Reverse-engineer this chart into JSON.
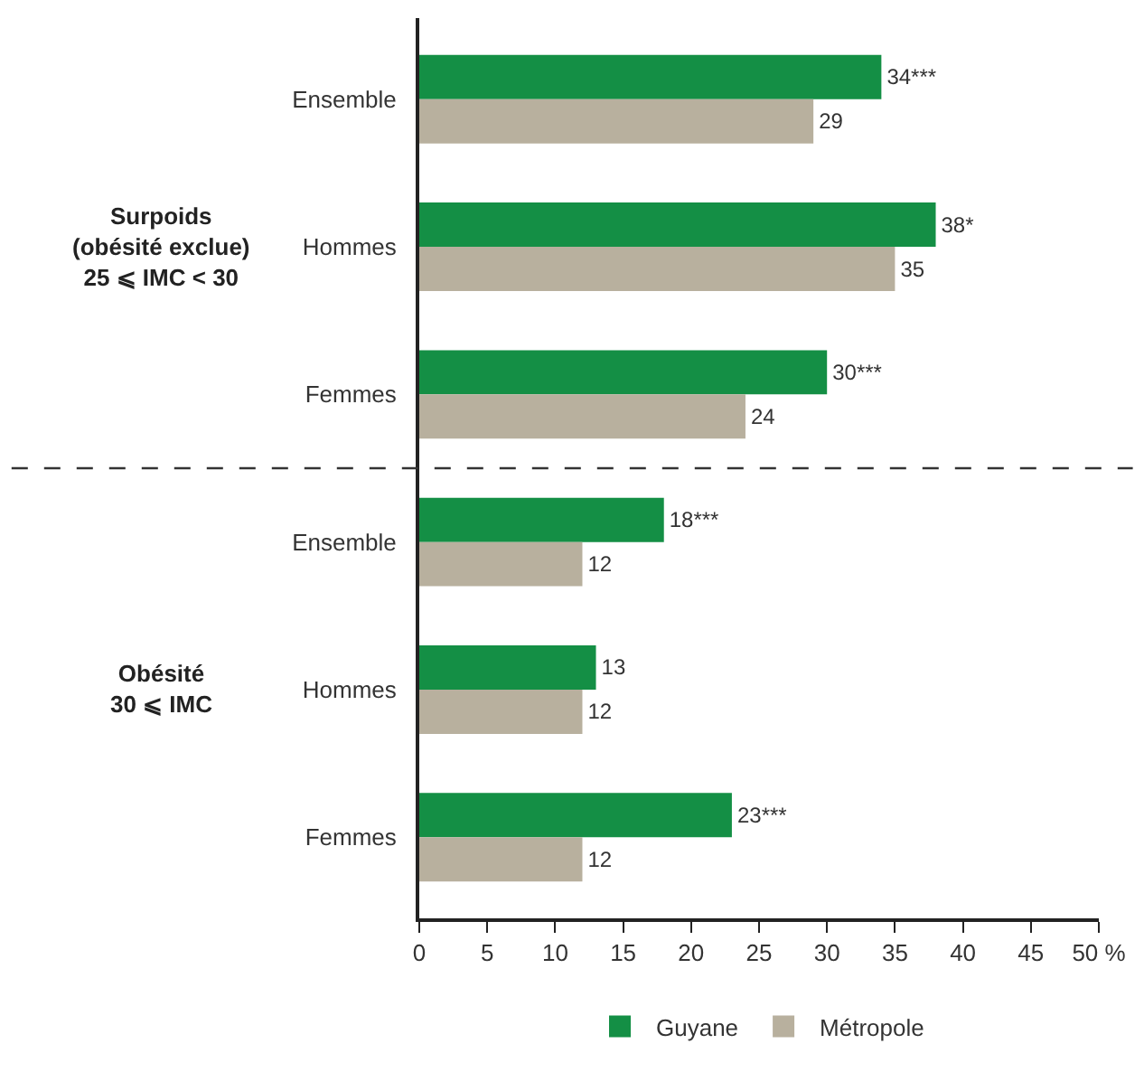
{
  "chart_data": {
    "type": "bar",
    "orientation": "horizontal",
    "categories": [
      "Ensemble",
      "Hommes",
      "Femmes",
      "Ensemble",
      "Hommes",
      "Femmes"
    ],
    "series": [
      {
        "name": "Guyane",
        "color": "#148f45",
        "values": [
          34,
          38,
          30,
          18,
          13,
          23
        ],
        "value_labels": [
          "34***",
          "38*",
          "30***",
          "18***",
          "13",
          "23***"
        ]
      },
      {
        "name": "Métropole",
        "color": "#b8b09e",
        "values": [
          29,
          35,
          24,
          12,
          12,
          12
        ],
        "value_labels": [
          "29",
          "35",
          "24",
          "12",
          "12",
          "12"
        ]
      }
    ],
    "xlim": [
      0,
      50
    ],
    "xticks": [
      0,
      5,
      10,
      15,
      20,
      25,
      30,
      35,
      40,
      45,
      {
        "value": 50,
        "label": "50 %"
      }
    ],
    "annotations": [
      "Surpoids\n(obésité exclue)\n25 ⩽ IMC < 30",
      "Obésité\n30 ⩽ IMC"
    ],
    "legend": "bottom"
  }
}
